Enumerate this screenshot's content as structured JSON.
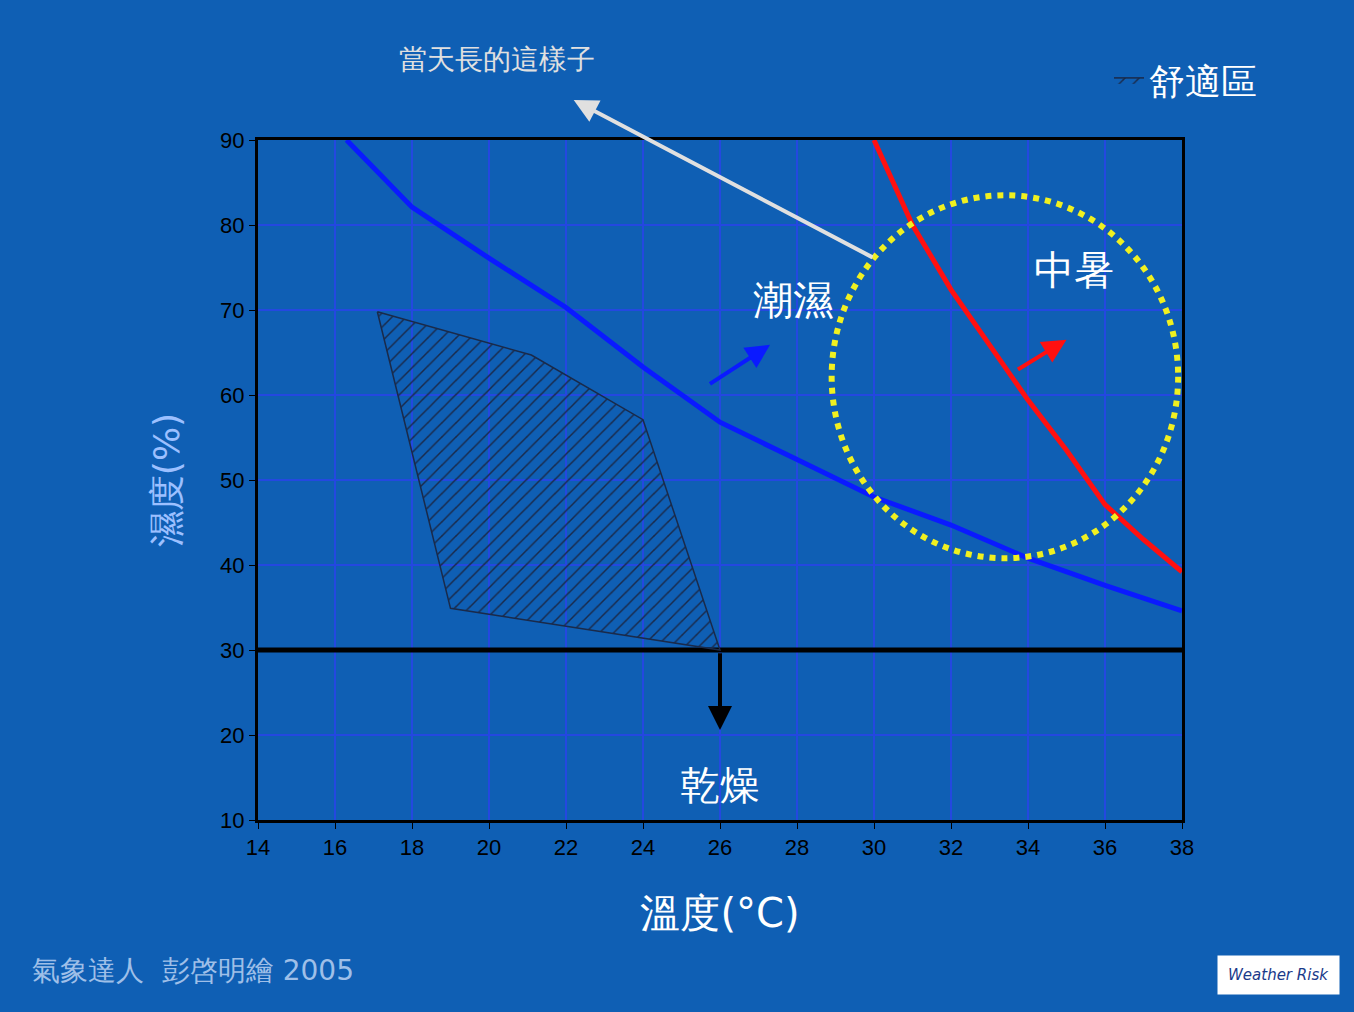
{
  "chart_data": {
    "type": "line",
    "x_label": "溫度(°C)",
    "y_label": "濕度(%)",
    "xlim": [
      14,
      38
    ],
    "xticks": [
      14,
      16,
      18,
      20,
      22,
      24,
      26,
      28,
      30,
      32,
      34,
      36,
      38
    ],
    "ylim": [
      10,
      90
    ],
    "yticks": [
      10,
      20,
      30,
      40,
      50,
      60,
      70,
      80,
      90
    ],
    "grid": true,
    "legend": "upper right",
    "series": [
      {
        "color": "#0a1aff",
        "x": [
          16.3,
          18,
          20,
          22,
          24,
          26,
          28,
          30,
          32,
          34,
          36,
          38
        ],
        "values": [
          90,
          82.1,
          76.1,
          70.3,
          63.3,
          56.8,
          52.4,
          48.0,
          44.7,
          40.8,
          37.6,
          34.6
        ]
      },
      {
        "color": "#ff1010",
        "x": [
          30,
          31,
          32,
          33,
          34,
          35,
          36,
          37,
          38
        ],
        "values": [
          90,
          80,
          72.4,
          65.9,
          59.4,
          53.5,
          47.1,
          43,
          39.2
        ]
      },
      {
        "color": "#000000",
        "x": [
          14,
          38
        ],
        "values": [
          30,
          30
        ]
      },
      {
        "name": "舒適區",
        "type": "area",
        "color": "#1a2a4a",
        "x": [
          17.1,
          21.1,
          24.0,
          26,
          19.0,
          17.1
        ],
        "values": [
          69.8,
          64.7,
          57.1,
          30,
          34.9,
          69.8
        ]
      }
    ],
    "shapes": [
      {
        "type": "circle",
        "x0": 28.9,
        "x1": 37.9,
        "y0": 40.8,
        "y1": 83.5,
        "color": "#f0f020",
        "line_style": "dot"
      }
    ],
    "annotations": [
      {
        "text": "潮濕",
        "x": 27.9,
        "y": 71.2,
        "color": "#ffffff"
      },
      {
        "text": "中暑",
        "x": 35.2,
        "y": 74.7,
        "color": "#ffffff"
      },
      {
        "text": "乾燥",
        "x": 26.0,
        "y": 14.1,
        "color": "#ffffff"
      },
      {
        "text": "當天長的這樣子",
        "x": 20.2,
        "y": 99.5,
        "color": "#e0e0e0"
      }
    ],
    "arrows": [
      {
        "from": [
          25.7,
          61.2
        ],
        "to": [
          27.3,
          65.9
        ],
        "color": "#0a1aff"
      },
      {
        "from": [
          33.7,
          62.9
        ],
        "to": [
          35.0,
          66.5
        ],
        "color": "#ff1010"
      },
      {
        "from": [
          26,
          29.8
        ],
        "to": [
          26,
          20.6
        ],
        "color": "#000000"
      },
      {
        "from": [
          30.0,
          76.1
        ],
        "to": [
          22.2,
          94.7
        ],
        "color": "#e0e0e0"
      }
    ],
    "credit": "氣象達人  彭啓明繪 2005",
    "logo": "Weather Risk"
  }
}
